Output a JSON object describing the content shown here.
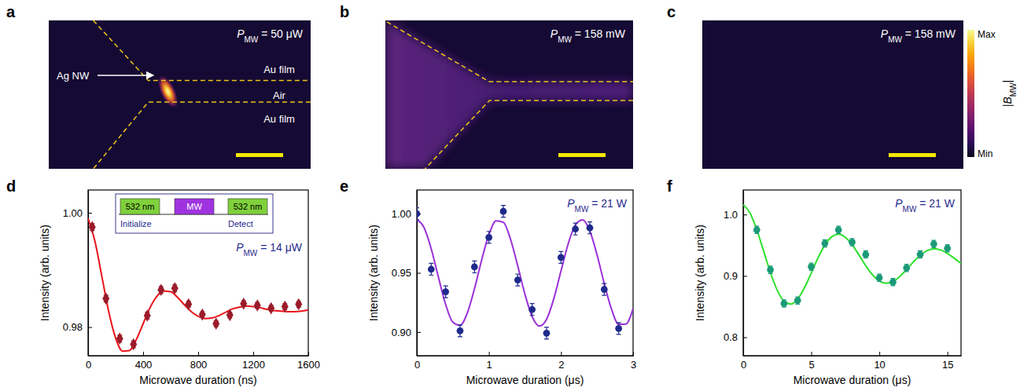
{
  "chart_data": [
    {
      "type": "image",
      "panel": "a",
      "annotation": {
        "text": "P",
        "sub": "MW",
        "rest": " = 50 μW"
      },
      "labels": [
        "Au film",
        "Air",
        "Au film"
      ],
      "pointer": "Ag NW"
    },
    {
      "type": "image",
      "panel": "b",
      "annotation": {
        "text": "P",
        "sub": "MW",
        "rest": " = 158 mW"
      }
    },
    {
      "type": "image",
      "panel": "c",
      "annotation": {
        "text": "P",
        "sub": "MW",
        "rest": " = 158 mW"
      },
      "colorbar": {
        "title": {
          "text": "|B",
          "sub": "MW",
          "rest": "|"
        },
        "range": [
          0,
          1
        ],
        "ticks": [
          {
            "value": 1,
            "label": "Max"
          },
          {
            "value": 0,
            "label": "Min"
          }
        ]
      }
    },
    {
      "type": "scatter",
      "panel": "d",
      "annotation": {
        "text": "P",
        "sub": "MW",
        "rest": " = 14 μW"
      },
      "inset": {
        "pulses": [
          "532 nm",
          "MW",
          "532 nm"
        ],
        "labels": [
          "Initialize",
          "Detect"
        ]
      },
      "xlabel": "Microwave duration (ns)",
      "ylabel": "Intensity (arb. units)",
      "xlim": [
        0,
        1600
      ],
      "xticks": [
        0,
        400,
        800,
        1200,
        1600
      ],
      "ylim": [
        0.975,
        1.004
      ],
      "yticks": [
        0.98,
        {
          "value": 1,
          "label": "1.00"
        }
      ],
      "series": [
        {
          "type": "line",
          "color": "#e8141b",
          "x": [
            0,
            50,
            100,
            150,
            200,
            250,
            300,
            350,
            400,
            450,
            500,
            550,
            600,
            650,
            700,
            750,
            800,
            850,
            900,
            950,
            1000,
            1050,
            1100,
            1150,
            1200,
            1250,
            1300,
            1350,
            1400,
            1450,
            1500,
            1550,
            1600
          ],
          "values": [
            0.999,
            0.995,
            0.9889,
            0.9827,
            0.9781,
            0.9758,
            0.9759,
            0.9778,
            0.9806,
            0.9834,
            0.9854,
            0.9863,
            0.9862,
            0.9852,
            0.9839,
            0.9827,
            0.9819,
            0.9815,
            0.9816,
            0.982,
            0.9826,
            0.9832,
            0.9835,
            0.9837,
            0.9836,
            0.9834,
            0.9831,
            0.9829,
            0.9828,
            0.9827,
            0.9827,
            0.9828,
            0.983
          ]
        },
        {
          "type": "scatter",
          "color": "#9b1b2a",
          "marker": "diamond",
          "x": [
            30,
            130,
            230,
            330,
            430,
            530,
            630,
            730,
            830,
            930,
            1030,
            1130,
            1230,
            1330,
            1430,
            1530
          ],
          "values": [
            0.9975,
            0.985,
            0.978,
            0.977,
            0.982,
            0.9865,
            0.9868,
            0.984,
            0.9822,
            0.9806,
            0.9821,
            0.9841,
            0.9838,
            0.9833,
            0.9836,
            0.984
          ],
          "errors": [
            0.0006,
            0.0006,
            0.0006,
            0.0006,
            0.0006,
            0.0006,
            0.0006,
            0.0005,
            0.0005,
            0.0005,
            0.0005,
            0.0005,
            0.0005,
            0.0005,
            0.0005,
            0.0005
          ]
        }
      ]
    },
    {
      "type": "scatter",
      "panel": "e",
      "annotation": {
        "text": "P",
        "sub": "MW",
        "rest": " = 21 W"
      },
      "xlabel": "Microwave duration (μs)",
      "ylabel": "Intensity (arb. units)",
      "xlim": [
        0,
        3
      ],
      "xticks": [
        0,
        1,
        2,
        3
      ],
      "ylim": [
        0.88,
        1.02
      ],
      "yticks": [
        {
          "value": 0.9,
          "label": "0.90"
        },
        0.95,
        {
          "value": 1,
          "label": "1.00"
        }
      ],
      "series": [
        {
          "type": "line",
          "color": "#9b30d9",
          "x": [
            0,
            0.1,
            0.2,
            0.3,
            0.4,
            0.5,
            0.6,
            0.7,
            0.8,
            0.9,
            1.0,
            1.1,
            1.2,
            1.3,
            1.4,
            1.5,
            1.6,
            1.7,
            1.8,
            1.9,
            2.0,
            2.1,
            2.2,
            2.3,
            2.4,
            2.5,
            2.6,
            2.7,
            2.8,
            2.9,
            3.0
          ],
          "values": [
            0.995,
            0.9883,
            0.9703,
            0.9463,
            0.9233,
            0.9083,
            0.9056,
            0.9159,
            0.9366,
            0.961,
            0.9822,
            0.994,
            0.9927,
            0.9784,
            0.9559,
            0.9319,
            0.913,
            0.905,
            0.9107,
            0.928,
            0.9516,
            0.9746,
            0.9905,
            0.9948,
            0.9854,
            0.9653,
            0.941,
            0.9195,
            0.9065,
            0.9067,
            0.9198
          ]
        },
        {
          "type": "scatter",
          "color": "#1f2a8c",
          "marker": "circle",
          "x": [
            0,
            0.2,
            0.4,
            0.6,
            0.8,
            1.0,
            1.2,
            1.4,
            1.6,
            1.8,
            2.0,
            2.2,
            2.4,
            2.6,
            2.8
          ],
          "values": [
            1.0,
            0.953,
            0.934,
            0.901,
            0.955,
            0.98,
            1.002,
            0.944,
            0.919,
            0.899,
            0.963,
            0.987,
            0.988,
            0.936,
            0.903
          ],
          "errors": [
            0.005,
            0.005,
            0.005,
            0.005,
            0.005,
            0.005,
            0.005,
            0.005,
            0.005,
            0.005,
            0.005,
            0.005,
            0.005,
            0.005,
            0.005
          ]
        }
      ]
    },
    {
      "type": "scatter",
      "panel": "f",
      "annotation": {
        "text": "P",
        "sub": "MW",
        "rest": " = 21 W"
      },
      "xlabel": "Microwave duration (μs)",
      "ylabel": "Intensity (arb. units)",
      "xlim": [
        0,
        16
      ],
      "xticks": [
        0,
        5,
        10,
        15
      ],
      "ylim": [
        0.77,
        1.04
      ],
      "yticks": [
        0.8,
        0.9,
        {
          "value": 1,
          "label": "1.0"
        }
      ],
      "series": [
        {
          "type": "line",
          "color": "#2ee02e",
          "x": [
            0,
            0.5,
            1,
            1.5,
            2,
            2.5,
            3,
            3.5,
            4,
            4.5,
            5,
            5.5,
            6,
            6.5,
            7,
            7.5,
            8,
            8.5,
            9,
            9.5,
            10,
            10.5,
            11,
            11.5,
            12,
            12.5,
            13,
            13.5,
            14,
            14.5,
            15,
            15.5,
            16
          ],
          "values": [
            1.016,
            1.0027,
            0.9754,
            0.9407,
            0.9056,
            0.8767,
            0.8588,
            0.8541,
            0.8624,
            0.8806,
            0.9046,
            0.9294,
            0.9503,
            0.9637,
            0.968,
            0.963,
            0.9509,
            0.9343,
            0.9167,
            0.9018,
            0.8917,
            0.8881,
            0.8909,
            0.899,
            0.9104,
            0.9228,
            0.9336,
            0.941,
            0.944,
            0.9423,
            0.9366,
            0.9289,
            0.9204
          ]
        },
        {
          "type": "scatter",
          "color": "#1a9a78",
          "marker": "circle",
          "x": [
            1,
            2,
            3,
            4,
            5,
            6,
            7,
            8,
            9,
            10,
            11,
            12,
            13,
            14,
            15
          ],
          "values": [
            0.975,
            0.91,
            0.855,
            0.86,
            0.915,
            0.953,
            0.975,
            0.955,
            0.935,
            0.897,
            0.89,
            0.913,
            0.935,
            0.952,
            0.945
          ],
          "errors": [
            0.006,
            0.006,
            0.006,
            0.006,
            0.006,
            0.006,
            0.006,
            0.006,
            0.006,
            0.006,
            0.006,
            0.006,
            0.006,
            0.006,
            0.006
          ]
        }
      ]
    }
  ]
}
